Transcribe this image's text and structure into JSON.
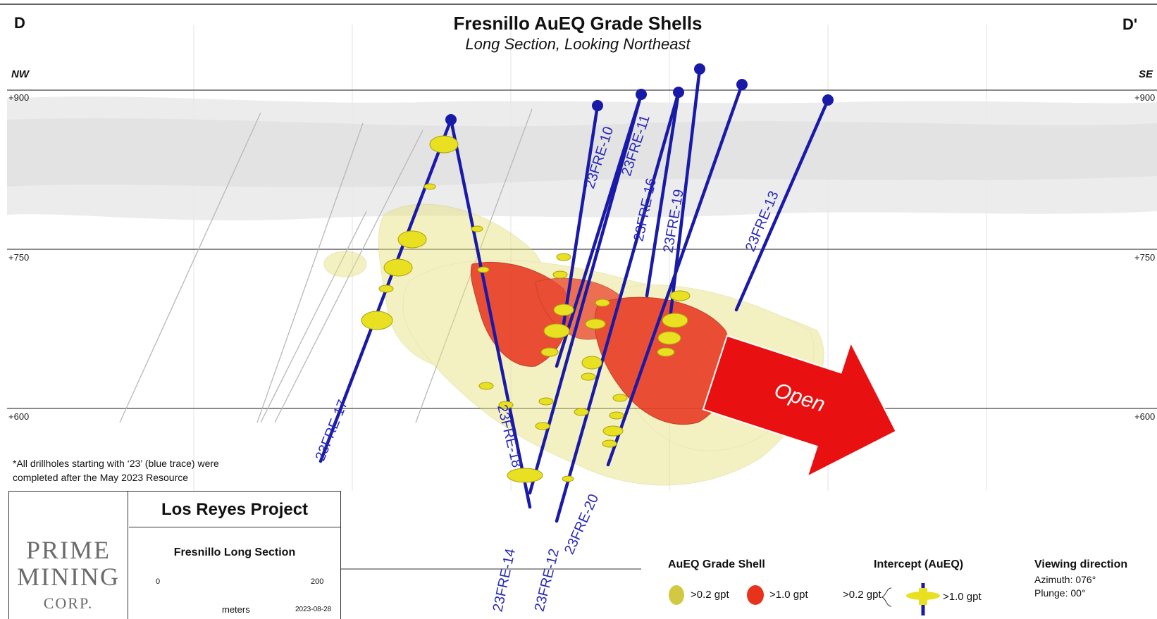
{
  "header": {
    "left_label": "D",
    "right_label": "D'",
    "title": "Fresnillo AuEQ Grade Shells",
    "subtitle": "Long Section, Looking Northeast",
    "left_direction": "NW",
    "right_direction": "SE"
  },
  "elevations": {
    "top": "+900",
    "mid": "+750",
    "low": "+600",
    "top_right": "+900",
    "mid_right": "+750",
    "low_right": "+600"
  },
  "drillholes": {
    "h10": "23FRE-10",
    "h11": "23FRE-11",
    "h16": "23FRE-16",
    "h19": "23FRE-19",
    "h13": "23FRE-13",
    "h17": "23FRE-17",
    "h18": "23FRE-18",
    "h14": "23FRE-14",
    "h12": "23FRE-12",
    "h20": "23FRE-20"
  },
  "open_arrow_label": "Open",
  "note": {
    "line1": "*All drillholes starting with ‘23’ (blue trace) were",
    "line2": "completed after the May 2023 Resource"
  },
  "title_block": {
    "logo_line1": "PRIME",
    "logo_line2": "MINING",
    "logo_line3": "CORP.",
    "project": "Los Reyes Project",
    "section": "Fresnillo Long Section",
    "scale_min": "0",
    "scale_max": "200",
    "scale_unit": "meters",
    "date": "2023-08-28"
  },
  "legend": {
    "shell_title": "AuEQ Grade Shell",
    "shell_low": ">0.2 gpt",
    "shell_high": ">1.0 gpt",
    "intercept_title": "Intercept (AuEQ)",
    "intercept_low": ">0.2 gpt",
    "intercept_high": ">1.0 gpt",
    "view_title": "Viewing direction",
    "azimuth": "Azimuth: 076°",
    "plunge": "Plunge: 00°"
  },
  "colors": {
    "drill_trace": "#1a1aa8",
    "low_grade_shell": "#e6e27a",
    "high_grade_shell": "#e8321c",
    "intercept": "#e8e020",
    "open_arrow": "#e81010"
  }
}
